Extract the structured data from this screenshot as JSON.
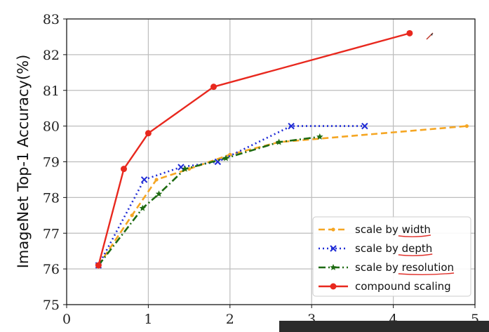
{
  "chart_data": {
    "type": "line",
    "title": "",
    "xlabel": "",
    "ylabel": "ImageNet Top-1 Accuracy(%)",
    "xlim": [
      0,
      5
    ],
    "ylim": [
      75,
      83
    ],
    "xticks": [
      0,
      1,
      2,
      3,
      4,
      5
    ],
    "yticks": [
      75,
      76,
      77,
      78,
      79,
      80,
      81,
      82,
      83
    ],
    "grid": true,
    "legend_position": "bottom-right",
    "series": [
      {
        "name": "scale by width",
        "color": "#f5a623",
        "line_style": "dashed",
        "marker": "dot",
        "x": [
          0.39,
          0.8,
          1.1,
          1.5,
          2.0,
          2.6,
          4.9
        ],
        "y": [
          76.1,
          77.5,
          78.5,
          78.8,
          79.2,
          79.55,
          80.0
        ]
      },
      {
        "name": "scale by depth",
        "color": "#1f2bd6",
        "line_style": "dotted",
        "marker": "x",
        "x": [
          0.39,
          0.95,
          1.4,
          1.85,
          2.75,
          3.65
        ],
        "y": [
          76.1,
          78.5,
          78.85,
          79.0,
          80.0,
          80.0
        ]
      },
      {
        "name": "scale by resolution",
        "color": "#1e6b12",
        "line_style": "dashdot",
        "marker": "star",
        "x": [
          0.39,
          0.93,
          1.13,
          1.45,
          1.95,
          2.6,
          3.1
        ],
        "y": [
          76.1,
          77.7,
          78.1,
          78.8,
          79.1,
          79.55,
          79.7
        ]
      },
      {
        "name": "compound scaling",
        "color": "#e8281e",
        "line_style": "solid",
        "marker": "circle",
        "x": [
          0.39,
          0.7,
          1.0,
          1.8,
          4.2
        ],
        "y": [
          76.1,
          78.8,
          79.8,
          81.1,
          82.6
        ]
      }
    ]
  },
  "legend": {
    "underlined_words": [
      "width",
      "depth",
      "resolution"
    ]
  }
}
